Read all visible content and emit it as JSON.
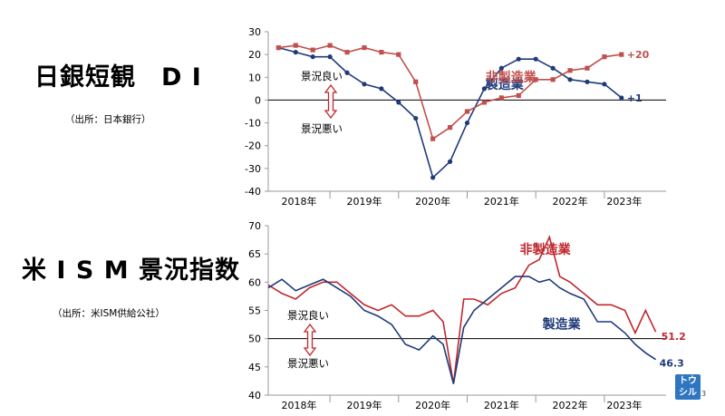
{
  "title_top": "日銀短観　D I",
  "source_top": "（出所：日本銀行）",
  "title_bottom": "米 I S M 景況指数",
  "source_bottom": "（出所：米ISM供給公社）",
  "logo_text": "トウシル",
  "page_number": "3",
  "chart_data": [
    {
      "type": "line",
      "id": "tankan",
      "ylim": [
        -40,
        30
      ],
      "yticks": [
        30,
        20,
        10,
        0,
        -10,
        -20,
        -30,
        -40
      ],
      "categories": [
        "2018年",
        "2019年",
        "2020年",
        "2021年",
        "2022年",
        "2023年"
      ],
      "x_range": [
        2017.6,
        2023.4
      ],
      "x_dividers": [
        2018.5,
        2019.5,
        2020.5,
        2021.5,
        2022.5
      ],
      "reference_line": 0,
      "annotations": {
        "good": "景況良い",
        "bad": "景況悪い"
      },
      "series": [
        {
          "name": "製造業",
          "color": "#1f3a7a",
          "marker": "circle",
          "end_label": "+1",
          "x": [
            2017.75,
            2018.0,
            2018.25,
            2018.5,
            2018.75,
            2019.0,
            2019.25,
            2019.5,
            2019.75,
            2020.0,
            2020.25,
            2020.5,
            2020.75,
            2021.0,
            2021.25,
            2021.5,
            2021.75,
            2022.0,
            2022.25,
            2022.5,
            2022.75,
            2023.0,
            2023.25
          ],
          "values": [
            23,
            21,
            19,
            19,
            12,
            7,
            5,
            -1,
            -8,
            -34,
            -27,
            -10,
            5,
            14,
            18,
            18,
            14,
            9,
            8,
            7,
            1,
            null,
            null
          ]
        },
        {
          "name": "非製造業",
          "color": "#c0504d",
          "marker": "square",
          "end_label": "+20",
          "x": [
            2017.75,
            2018.0,
            2018.25,
            2018.5,
            2018.75,
            2019.0,
            2019.25,
            2019.5,
            2019.75,
            2020.0,
            2020.25,
            2020.5,
            2020.75,
            2021.0,
            2021.25,
            2021.5,
            2021.75,
            2022.0,
            2022.25,
            2022.5,
            2022.75,
            2023.0
          ],
          "values": [
            23,
            24,
            22,
            24,
            21,
            23,
            21,
            20,
            8,
            -17,
            -12,
            -5,
            -1,
            1,
            2,
            9,
            9,
            13,
            14,
            19,
            20,
            null
          ]
        }
      ]
    },
    {
      "type": "line",
      "id": "ism",
      "ylim": [
        40,
        70
      ],
      "yticks": [
        70,
        65,
        60,
        55,
        50,
        45,
        40
      ],
      "categories": [
        "2018年",
        "2019年",
        "2020年",
        "2021年",
        "2022年",
        "2023年"
      ],
      "x_range": [
        2017.6,
        2023.4
      ],
      "x_dividers": [
        2018.5,
        2019.5,
        2020.5,
        2021.5,
        2022.5
      ],
      "reference_line": 50,
      "annotations": {
        "good": "景況良い",
        "bad": "景況悪い"
      },
      "series": [
        {
          "name": "非製造業",
          "color": "#c0272d",
          "end_label": "51.2",
          "x": [
            2017.6,
            2017.8,
            2018.0,
            2018.2,
            2018.4,
            2018.6,
            2018.8,
            2019.0,
            2019.2,
            2019.4,
            2019.6,
            2019.8,
            2020.0,
            2020.15,
            2020.3,
            2020.45,
            2020.6,
            2020.8,
            2021.0,
            2021.2,
            2021.4,
            2021.55,
            2021.7,
            2021.85,
            2022.0,
            2022.2,
            2022.4,
            2022.6,
            2022.8,
            2022.95,
            2023.1,
            2023.25
          ],
          "values": [
            59.5,
            58,
            57,
            59,
            60,
            60,
            58,
            56,
            55,
            56,
            54,
            54,
            55,
            53,
            42,
            57,
            57,
            56,
            58,
            59,
            63,
            64,
            68,
            61,
            60,
            58,
            56,
            56,
            55,
            51,
            55,
            51.2
          ]
        },
        {
          "name": "製造業",
          "color": "#1f3a7a",
          "end_label": "46.3",
          "x": [
            2017.6,
            2017.8,
            2018.0,
            2018.2,
            2018.4,
            2018.6,
            2018.8,
            2019.0,
            2019.2,
            2019.4,
            2019.6,
            2019.8,
            2020.0,
            2020.15,
            2020.3,
            2020.45,
            2020.6,
            2020.8,
            2021.0,
            2021.2,
            2021.4,
            2021.55,
            2021.7,
            2021.85,
            2022.0,
            2022.2,
            2022.4,
            2022.6,
            2022.8,
            2022.95,
            2023.1,
            2023.25
          ],
          "values": [
            59,
            60.5,
            58.5,
            59.5,
            60.5,
            59,
            57.5,
            55,
            54,
            52.5,
            49,
            48,
            50.5,
            49,
            42,
            52,
            55,
            57,
            59,
            61,
            61,
            60,
            60.5,
            59,
            58,
            57,
            53,
            53,
            51,
            49,
            47.5,
            46.3
          ]
        }
      ]
    }
  ]
}
